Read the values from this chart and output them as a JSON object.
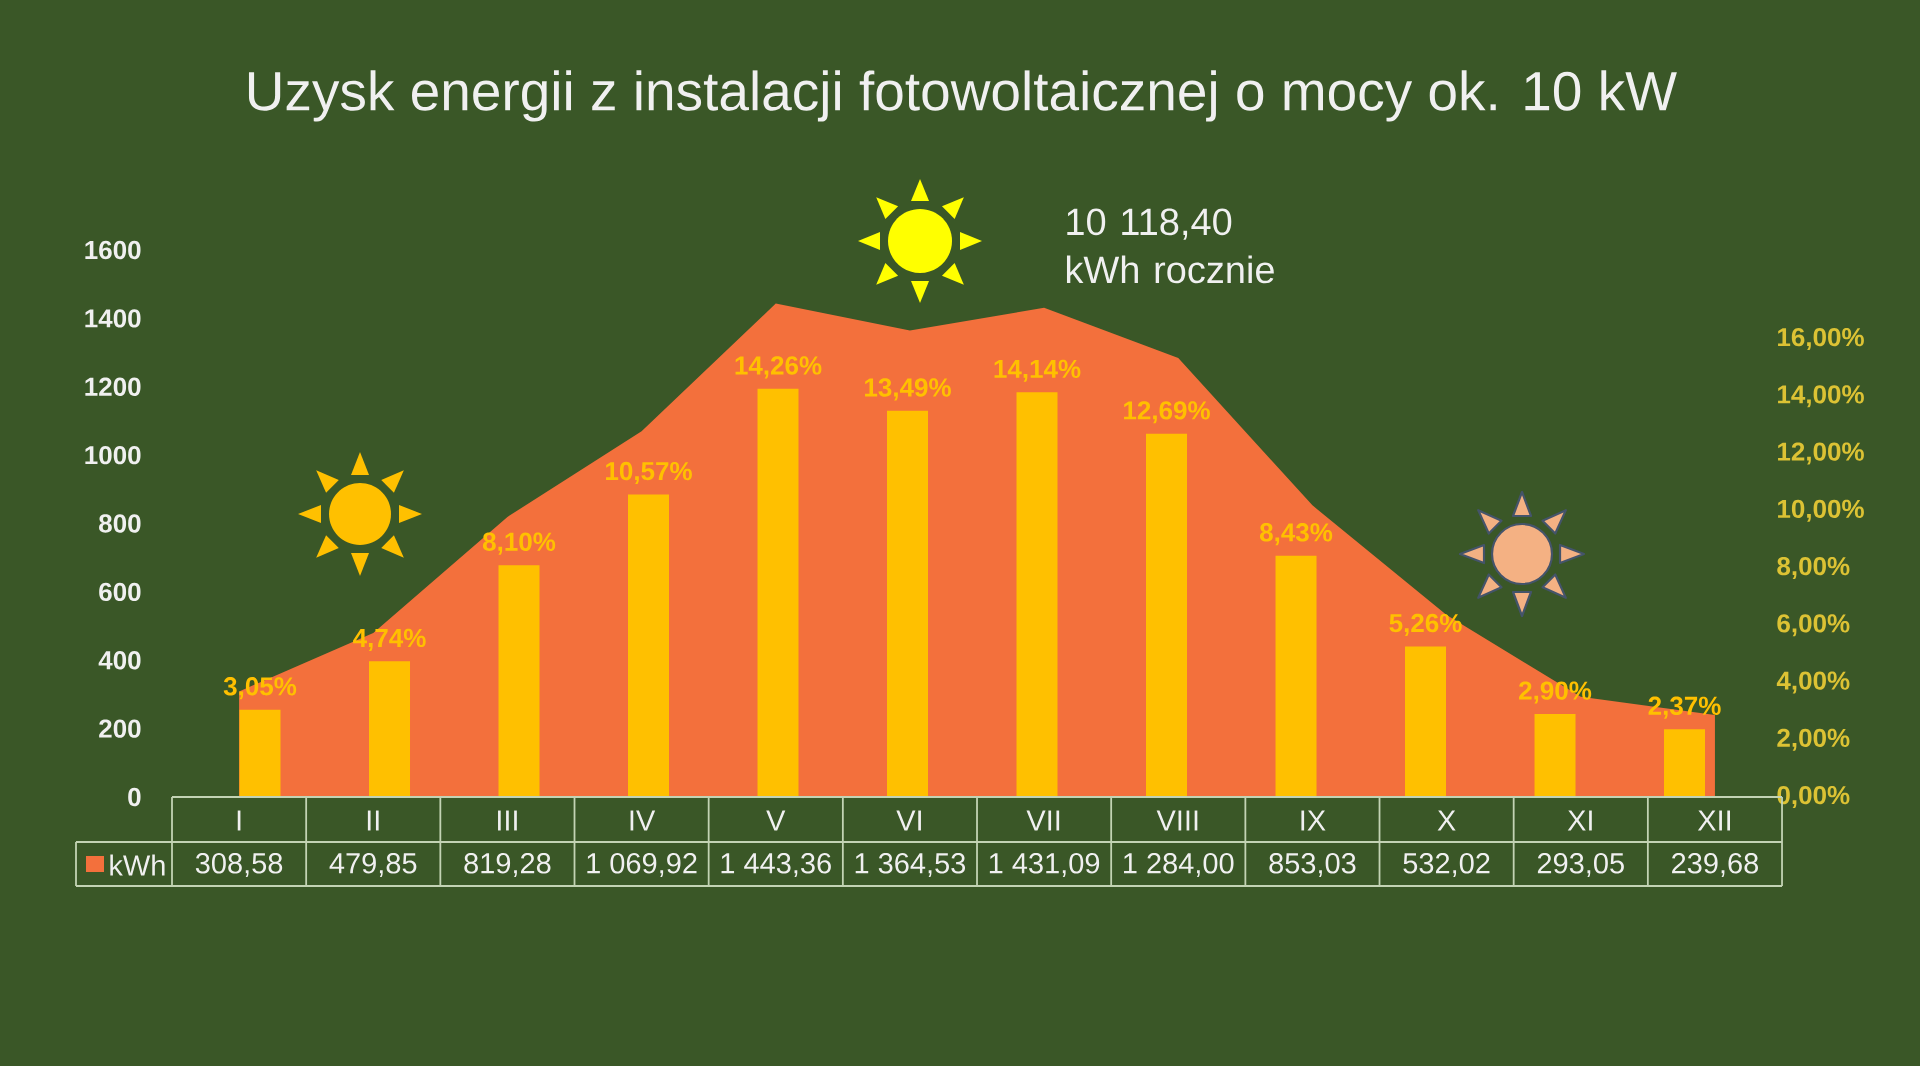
{
  "chart_data": {
    "type": "bar",
    "title": "Uzysk energii z instalacji fotowoltaicznej o mocy ok. 10 kW",
    "categories": [
      "I",
      "II",
      "III",
      "IV",
      "V",
      "VI",
      "VII",
      "VIII",
      "IX",
      "X",
      "XI",
      "XII"
    ],
    "series": [
      {
        "name": "kWh",
        "type": "area",
        "color": "#f3703c",
        "values": [
          308.58,
          479.85,
          819.28,
          1069.92,
          1443.36,
          1364.53,
          1431.09,
          1284.0,
          853.03,
          532.02,
          293.05,
          239.68
        ],
        "value_labels": [
          "308,58",
          "479,85",
          "819,28",
          "1 069,92",
          "1 443,36",
          "1 364,53",
          "1 431,09",
          "1 284,00",
          "853,03",
          "532,02",
          "293,05",
          "239,68"
        ]
      },
      {
        "axis": "y2",
        "color": "#ffc000",
        "values": [
          3.05,
          4.74,
          8.1,
          10.57,
          14.26,
          13.49,
          14.14,
          12.69,
          8.43,
          5.26,
          2.9,
          2.37
        ],
        "value_labels": [
          "3,05%",
          "4,74%",
          "8,10%",
          "10,57%",
          "14,26%",
          "13,49%",
          "14,14%",
          "12,69%",
          "8,43%",
          "5,26%",
          "2,90%",
          "2,37%"
        ]
      }
    ],
    "ylim": [
      0,
      1600
    ],
    "yticks": [
      0,
      200,
      400,
      600,
      800,
      1000,
      1200,
      1400,
      1600
    ],
    "y2lim": [
      0,
      16
    ],
    "y2ticks": [
      {
        "value": 0,
        "label": "0,00%"
      },
      {
        "value": 2,
        "label": "2,00%"
      },
      {
        "value": 4,
        "label": "4,00%"
      },
      {
        "value": 6,
        "label": "6,00%"
      },
      {
        "value": 8,
        "label": "8,00%"
      },
      {
        "value": 10,
        "label": "10,00%"
      },
      {
        "value": 12,
        "label": "12,00%"
      },
      {
        "value": 14,
        "label": "14,00%"
      },
      {
        "value": 16,
        "label": "16,00%"
      }
    ],
    "annotations": [
      "10 118,40 kWh rocznie"
    ],
    "legend": "bottom"
  }
}
